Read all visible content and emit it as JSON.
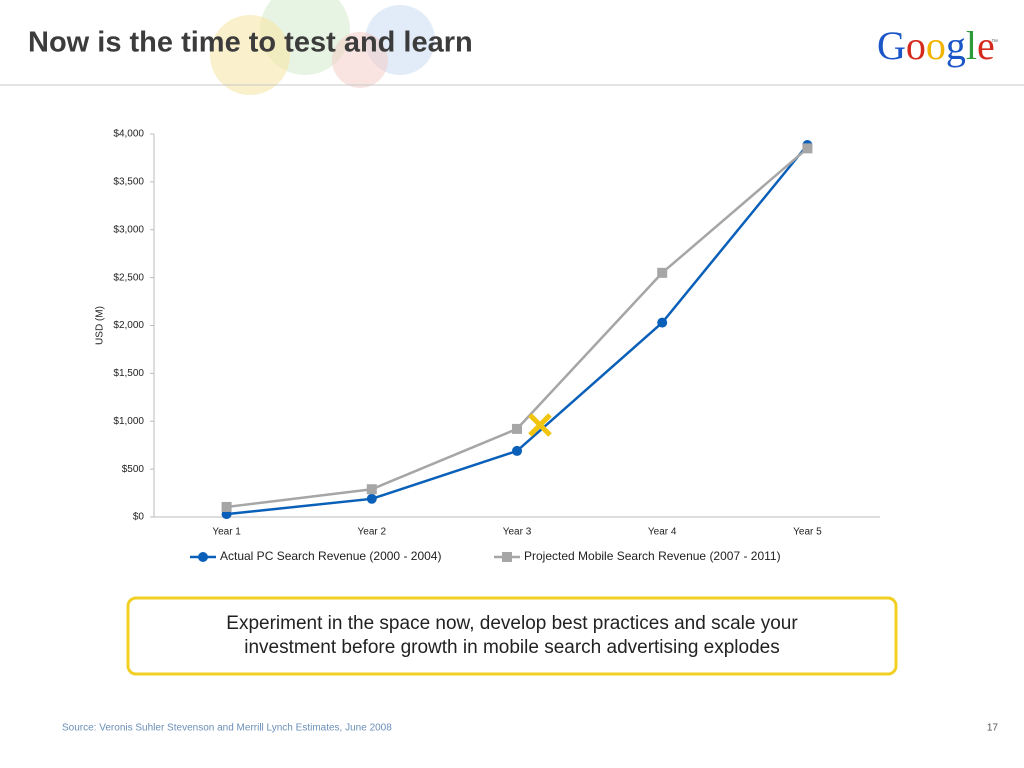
{
  "title": "Now is the time to test and learn",
  "logo": "Google",
  "logo_mark": "™",
  "callout": [
    "Experiment in the space now, develop best practices and scale your",
    "investment before growth in mobile search advertising explodes"
  ],
  "source": "Source: Veronis Suhler Stevenson and Merrill Lynch Estimates, June 2008",
  "page_number": "17",
  "chart_data": {
    "type": "line",
    "y_label": "USD (M)",
    "categories": [
      "Year 1",
      "Year 2",
      "Year 3",
      "Year 4",
      "Year 5"
    ],
    "series": [
      {
        "name": "Actual PC Search Revenue (2000 - 2004)",
        "color": "#0a60b8",
        "marker": "circle",
        "values": [
          30,
          190,
          690,
          2030,
          3885
        ]
      },
      {
        "name": "Projected Mobile Search Revenue (2007 - 2011)",
        "color": "#a6a6a6",
        "marker": "square",
        "values": [
          105,
          290,
          920,
          2550,
          3850
        ]
      }
    ],
    "ylim": [
      0,
      4000
    ],
    "yticks": [
      {
        "value": 0,
        "label": "$0"
      },
      {
        "value": 500,
        "label": "$500"
      },
      {
        "value": 1000,
        "label": "$1,000"
      },
      {
        "value": 1500,
        "label": "$1,500"
      },
      {
        "value": 2000,
        "label": "$2,000"
      },
      {
        "value": 2500,
        "label": "$2,500"
      },
      {
        "value": 3000,
        "label": "$3,000"
      },
      {
        "value": 3500,
        "label": "$3,500"
      },
      {
        "value": 4000,
        "label": "$4,000"
      }
    ],
    "legend": "bottom"
  }
}
